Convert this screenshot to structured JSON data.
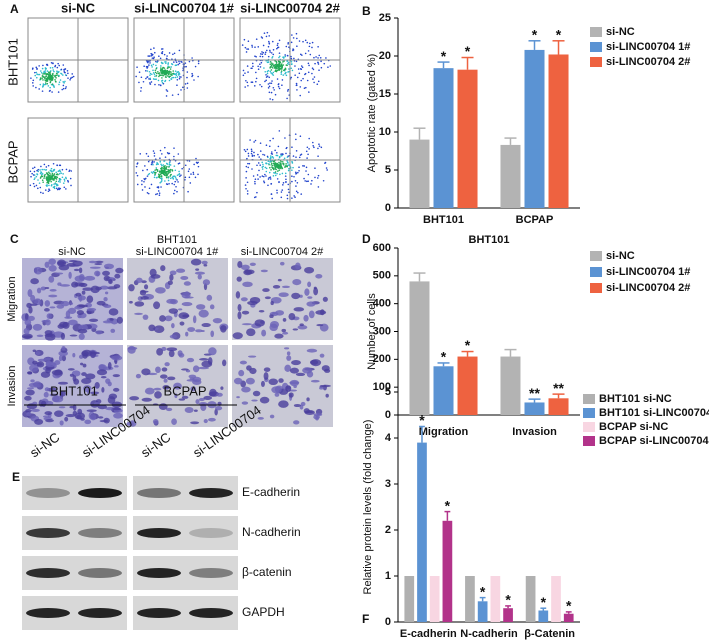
{
  "panel_a": {
    "label": "A",
    "columns": [
      "si-NC",
      "si-LINC00704 1#",
      "si-LINC00704 2#"
    ],
    "rows": [
      "BHT101",
      "BCPAP"
    ]
  },
  "panel_c": {
    "label": "C",
    "group": "BHT101",
    "columns": [
      "si-NC",
      "si-LINC00704 1#",
      "si-LINC00704 2#"
    ],
    "rows": [
      "Migration",
      "Invasion"
    ]
  },
  "panel_e": {
    "label": "E",
    "groups": [
      "BHT101",
      "BCPAP"
    ],
    "lanes": [
      "si-NC",
      "si-LINC00704",
      "si-NC",
      "si-LINC00704"
    ],
    "bands": [
      "E-cadherin",
      "N-cadherin",
      "β-catenin",
      "GAPDH"
    ]
  },
  "chart_data": [
    {
      "type": "bar",
      "panel_label": "B",
      "ylabel": "Apoptotic rate (gated %)",
      "categories": [
        "BHT101",
        "BCPAP"
      ],
      "ylim": [
        0,
        25
      ],
      "yticks": [
        0,
        5,
        10,
        15,
        20,
        25
      ],
      "series": [
        {
          "name": "si-NC",
          "color": "#b3b3b3",
          "values": [
            9.0,
            8.3
          ],
          "errors": [
            1.5,
            0.9
          ]
        },
        {
          "name": "si-LINC00704 1#",
          "color": "#5b93d3",
          "values": [
            18.4,
            20.8
          ],
          "errors": [
            0.8,
            1.2
          ],
          "annotations": [
            "*",
            "*"
          ]
        },
        {
          "name": "si-LINC00704 2#",
          "color": "#ee6240",
          "values": [
            18.2,
            20.2
          ],
          "errors": [
            1.6,
            1.8
          ],
          "annotations": [
            "*",
            "*"
          ]
        }
      ]
    },
    {
      "type": "bar",
      "panel_label": "D",
      "title": "BHT101",
      "ylabel": "Number of cells",
      "categories": [
        "Migration",
        "Invasion"
      ],
      "ylim": [
        0,
        600
      ],
      "yticks": [
        0,
        100,
        200,
        300,
        400,
        500,
        600
      ],
      "series": [
        {
          "name": "si-NC",
          "color": "#b3b3b3",
          "values": [
            480,
            210
          ],
          "errors": [
            30,
            25
          ]
        },
        {
          "name": "si-LINC00704 1#",
          "color": "#5b93d3",
          "values": [
            175,
            45
          ],
          "errors": [
            12,
            12
          ],
          "annotations": [
            "*",
            "**"
          ]
        },
        {
          "name": "si-LINC00704 2#",
          "color": "#ee6240",
          "values": [
            210,
            60
          ],
          "errors": [
            18,
            15
          ],
          "annotations": [
            "*",
            "**"
          ]
        }
      ]
    },
    {
      "type": "bar",
      "panel_label": "F",
      "ylabel": "Relative protein levels (fold change)",
      "categories": [
        "E-cadherin",
        "N-cadherin",
        "β-Catenin"
      ],
      "ylim": [
        0,
        5
      ],
      "yticks": [
        0,
        1,
        2,
        3,
        4,
        5
      ],
      "series": [
        {
          "name": "BHT101 si-NC",
          "color": "#b0b0b0",
          "values": [
            1,
            1,
            1
          ]
        },
        {
          "name": "BHT101 si-LINC00704",
          "color": "#5b93d3",
          "values": [
            3.9,
            0.45,
            0.25
          ],
          "errors": [
            0.35,
            0.08,
            0.05
          ],
          "annotations": [
            "*",
            "*",
            "*"
          ]
        },
        {
          "name": "BCPAP si-NC",
          "color": "#f8d6e2",
          "values": [
            1,
            1,
            1
          ]
        },
        {
          "name": "BCPAP si-LINC00704",
          "color": "#b2338a",
          "values": [
            2.2,
            0.3,
            0.18
          ],
          "errors": [
            0.2,
            0.05,
            0.04
          ],
          "annotations": [
            "*",
            "*",
            "*"
          ]
        }
      ]
    }
  ]
}
